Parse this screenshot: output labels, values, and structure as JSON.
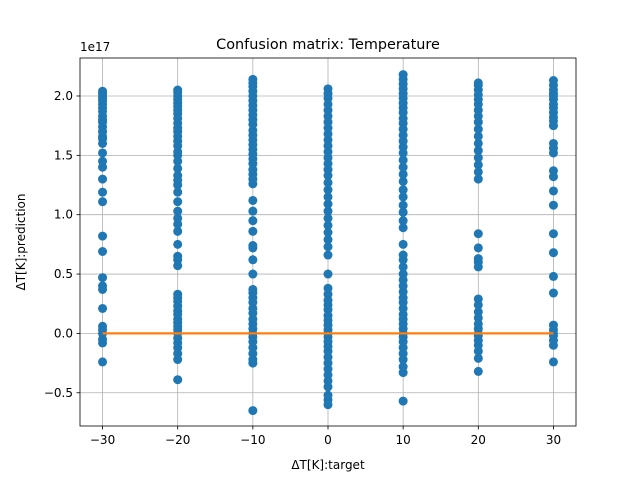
{
  "chart_data": {
    "type": "scatter",
    "title": "Confusion matrix: Temperature",
    "xlabel": "ΔT[K]:target",
    "ylabel": "ΔT[K]:prediction",
    "y_offset_text": "1e17",
    "xlim": [
      -33,
      33
    ],
    "ylim": [
      -0.78,
      2.32
    ],
    "xticks": [
      -30,
      -20,
      -10,
      0,
      10,
      20,
      30
    ],
    "xtick_labels": [
      "−30",
      "−20",
      "−10",
      "0",
      "10",
      "20",
      "30"
    ],
    "yticks": [
      -0.5,
      0.0,
      0.5,
      1.0,
      1.5,
      2.0
    ],
    "ytick_labels": [
      "−0.5",
      "0.0",
      "0.5",
      "1.0",
      "1.5",
      "2.0"
    ],
    "grid": true,
    "colors": {
      "scatter": "#1f77b4",
      "line": "#ff7f0e",
      "grid": "#b0b0b0"
    },
    "scatter_series": [
      {
        "x": -30,
        "y": [
          -0.24,
          -0.08,
          -0.05,
          0.0,
          0.03,
          0.06,
          0.21,
          0.37,
          0.4,
          0.47,
          0.69,
          0.82,
          1.11,
          1.19,
          1.3,
          1.4,
          1.45,
          1.52,
          1.6,
          1.64,
          1.66,
          1.7,
          1.74,
          1.78,
          1.8,
          1.83,
          1.87,
          1.9,
          1.93,
          1.96,
          1.98,
          2.0,
          2.02,
          2.04
        ]
      },
      {
        "x": -20,
        "y": [
          -0.39,
          -0.22,
          -0.17,
          -0.12,
          -0.08,
          -0.04,
          0.0,
          0.03,
          0.06,
          0.09,
          0.12,
          0.16,
          0.19,
          0.23,
          0.27,
          0.3,
          0.33,
          0.57,
          0.62,
          0.65,
          0.75,
          0.86,
          0.92,
          0.97,
          1.03,
          1.11,
          1.19,
          1.25,
          1.29,
          1.33,
          1.39,
          1.45,
          1.5,
          1.53,
          1.58,
          1.62,
          1.66,
          1.7,
          1.73,
          1.77,
          1.81,
          1.85,
          1.88,
          1.91,
          1.94,
          1.97,
          2.0,
          2.03,
          2.05
        ]
      },
      {
        "x": -10,
        "y": [
          -0.65,
          -0.25,
          -0.22,
          -0.17,
          -0.12,
          -0.07,
          -0.03,
          0.0,
          0.04,
          0.08,
          0.12,
          0.17,
          0.21,
          0.26,
          0.3,
          0.34,
          0.37,
          0.5,
          0.62,
          0.72,
          0.74,
          0.86,
          0.95,
          1.03,
          1.12,
          1.26,
          1.3,
          1.34,
          1.38,
          1.43,
          1.47,
          1.51,
          1.55,
          1.59,
          1.63,
          1.67,
          1.71,
          1.76,
          1.8,
          1.84,
          1.88,
          1.92,
          1.96,
          2.0,
          2.04,
          2.08,
          2.11,
          2.14
        ]
      },
      {
        "x": 0,
        "y": [
          -0.6,
          -0.56,
          -0.52,
          -0.45,
          -0.4,
          -0.35,
          -0.3,
          -0.25,
          -0.2,
          -0.15,
          -0.11,
          -0.07,
          -0.03,
          0.0,
          0.03,
          0.07,
          0.11,
          0.15,
          0.2,
          0.24,
          0.28,
          0.33,
          0.38,
          0.5,
          0.66,
          0.73,
          0.79,
          0.85,
          0.91,
          0.97,
          1.03,
          1.09,
          1.15,
          1.21,
          1.27,
          1.33,
          1.38,
          1.43,
          1.48,
          1.53,
          1.58,
          1.63,
          1.68,
          1.73,
          1.78,
          1.83,
          1.88,
          1.93,
          1.98,
          2.02,
          2.06
        ]
      },
      {
        "x": 10,
        "y": [
          -0.57,
          -0.33,
          -0.28,
          -0.22,
          -0.17,
          -0.12,
          -0.07,
          -0.03,
          0.0,
          0.04,
          0.08,
          0.12,
          0.16,
          0.21,
          0.26,
          0.3,
          0.35,
          0.4,
          0.45,
          0.5,
          0.56,
          0.62,
          0.66,
          0.75,
          0.89,
          0.95,
          1.02,
          1.08,
          1.15,
          1.21,
          1.28,
          1.34,
          1.4,
          1.46,
          1.52,
          1.57,
          1.62,
          1.67,
          1.72,
          1.77,
          1.81,
          1.86,
          1.9,
          1.94,
          1.98,
          2.02,
          2.06,
          2.1,
          2.14,
          2.18
        ]
      },
      {
        "x": 20,
        "y": [
          -0.32,
          -0.21,
          -0.15,
          -0.1,
          -0.06,
          -0.02,
          0.0,
          0.04,
          0.08,
          0.13,
          0.18,
          0.24,
          0.29,
          0.56,
          0.6,
          0.63,
          0.72,
          0.84,
          1.3,
          1.36,
          1.42,
          1.48,
          1.54,
          1.6,
          1.66,
          1.72,
          1.78,
          1.83,
          1.88,
          1.93,
          1.97,
          2.01,
          2.05,
          2.09,
          2.11
        ]
      },
      {
        "x": 30,
        "y": [
          -0.24,
          -0.1,
          -0.06,
          -0.02,
          0.0,
          0.03,
          0.07,
          0.34,
          0.48,
          0.68,
          0.84,
          1.08,
          1.2,
          1.32,
          1.37,
          1.52,
          1.56,
          1.6,
          1.75,
          1.79,
          1.82,
          1.86,
          1.9,
          1.93,
          1.97,
          2.0,
          2.02,
          2.05,
          2.09,
          2.13
        ]
      }
    ],
    "line_series": {
      "x": [
        -30,
        -20,
        -10,
        0,
        10,
        20,
        30
      ],
      "y": [
        0,
        0,
        0,
        0,
        0,
        0,
        0
      ]
    }
  }
}
